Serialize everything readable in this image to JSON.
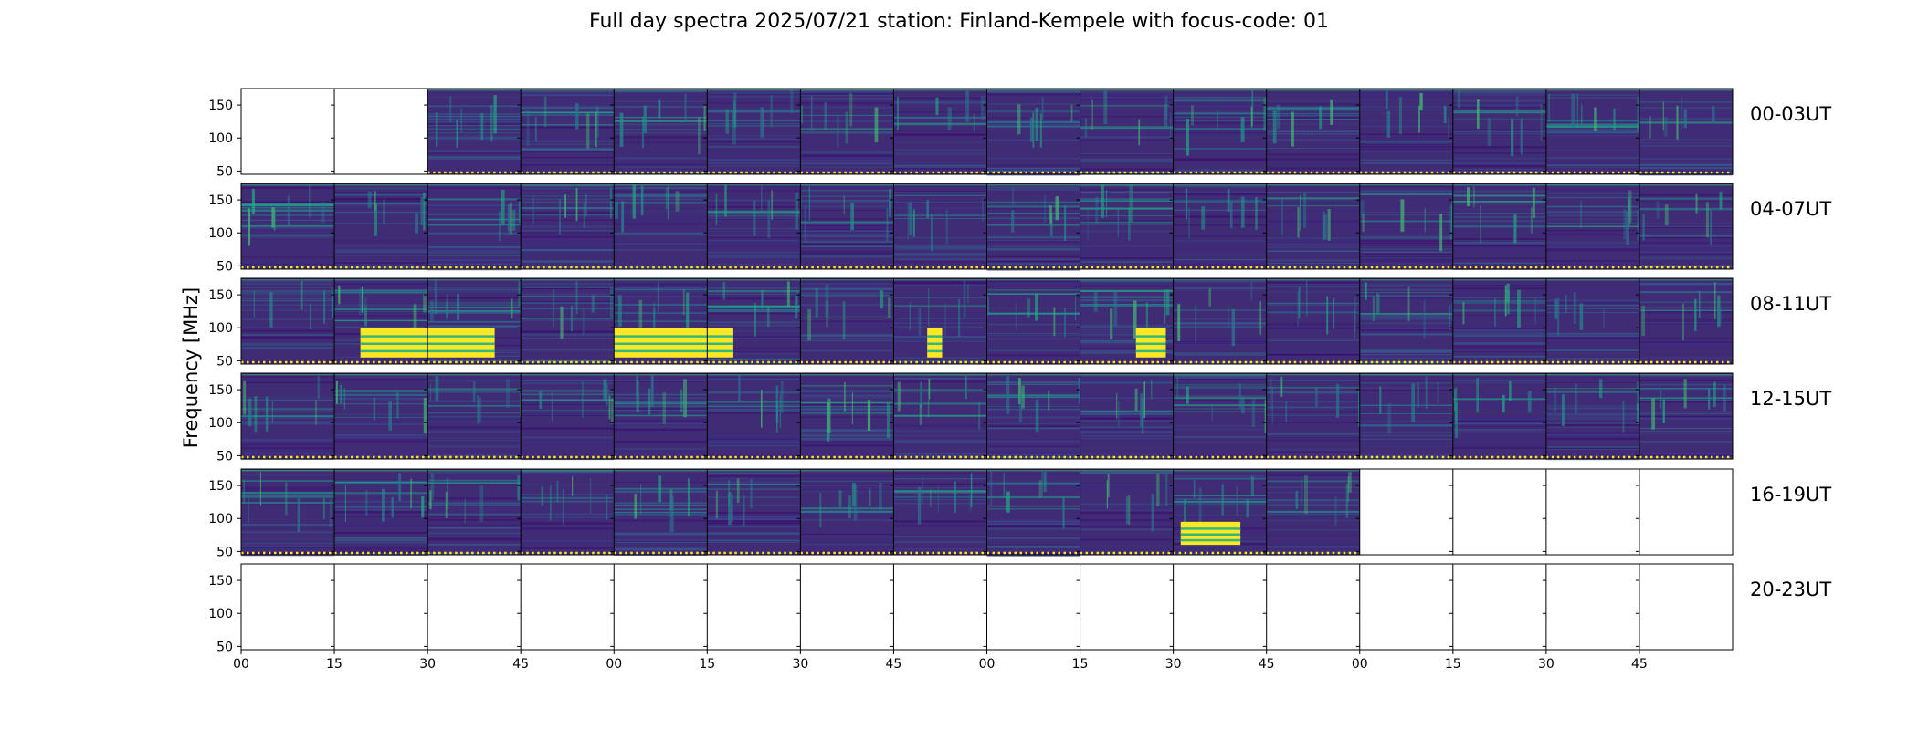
{
  "chart_data": {
    "type": "heatmap",
    "title": "Full day spectra 2025/07/21 station: Finland-Kempele with focus-code: 01",
    "ylabel": "Frequency [MHz]",
    "xlabel": "",
    "colormap": "viridis",
    "ylim": [
      45,
      175
    ],
    "yticks": [
      "50",
      "100",
      "150"
    ],
    "xticks": [
      "00",
      "15",
      "30",
      "45",
      "00",
      "15",
      "30",
      "45",
      "00",
      "15",
      "30",
      "45",
      "00",
      "15",
      "30",
      "45"
    ],
    "rows": [
      {
        "label": "00-03UT",
        "hours": [
          "00",
          "01",
          "02",
          "03"
        ],
        "data_panels": [
          2,
          3,
          4,
          5,
          6,
          7,
          8,
          9,
          10,
          11,
          12,
          13,
          14,
          15
        ],
        "bright_bursts": []
      },
      {
        "label": "04-07UT",
        "hours": [
          "04",
          "05",
          "06",
          "07"
        ],
        "data_panels": [
          0,
          1,
          2,
          3,
          4,
          5,
          6,
          7,
          8,
          9,
          10,
          11,
          12,
          13,
          14,
          15
        ],
        "bright_bursts": []
      },
      {
        "label": "08-11UT",
        "hours": [
          "08",
          "09",
          "10",
          "11"
        ],
        "data_panels": [
          0,
          1,
          2,
          3,
          4,
          5,
          6,
          7,
          8,
          9,
          10,
          11,
          12,
          13,
          14,
          15
        ],
        "bright_bursts": [
          {
            "start": 0.08,
            "end": 0.17,
            "fmin": 55,
            "fmax": 100
          },
          {
            "start": 0.25,
            "end": 0.33,
            "fmin": 55,
            "fmax": 100
          },
          {
            "start": 0.46,
            "end": 0.47,
            "fmin": 55,
            "fmax": 100
          },
          {
            "start": 0.6,
            "end": 0.62,
            "fmin": 55,
            "fmax": 100
          }
        ]
      },
      {
        "label": "12-15UT",
        "hours": [
          "12",
          "13",
          "14",
          "15"
        ],
        "data_panels": [
          0,
          1,
          2,
          3,
          4,
          5,
          6,
          7,
          8,
          9,
          10,
          11,
          12,
          13,
          14,
          15
        ],
        "bright_bursts": []
      },
      {
        "label": "16-19UT",
        "hours": [
          "16",
          "17",
          "18",
          "19"
        ],
        "data_panels": [
          0,
          1,
          2,
          3,
          4,
          5,
          6,
          7,
          8,
          9,
          10,
          11
        ],
        "bright_bursts": [
          {
            "start": 0.63,
            "end": 0.67,
            "fmin": 60,
            "fmax": 95
          }
        ]
      },
      {
        "label": "20-23UT",
        "hours": [
          "20",
          "21",
          "22",
          "23"
        ],
        "data_panels": [],
        "bright_bursts": []
      }
    ],
    "grid": false,
    "legend": "none"
  }
}
